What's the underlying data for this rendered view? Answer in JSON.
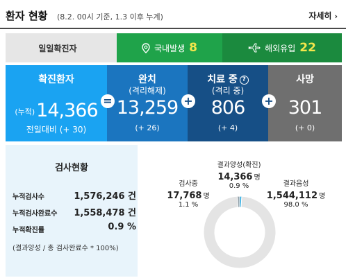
{
  "header": {
    "title": "환자 현황",
    "subtitle": "(8.2. 00시 기준, 1.3 이후 누계)",
    "more_label": "자세히",
    "more_chevron": "›"
  },
  "daily": {
    "label": "일일확진자",
    "domestic": {
      "label": "국내발생",
      "value": "8",
      "icon": "map-pin-icon"
    },
    "overseas": {
      "label": "해외유입",
      "value": "22",
      "icon": "airplane-icon"
    }
  },
  "stats": {
    "confirmed": {
      "label": "확진환자",
      "prefix": "(누적)",
      "value": "14,366",
      "delta": "전일대비 (+ 30)"
    },
    "recovered": {
      "label": "완치",
      "sub": "(격리해제)",
      "value": "13,259",
      "delta": "(+ 26)"
    },
    "treating": {
      "label": "치료 중",
      "help": "?",
      "sub": "(격리 중)",
      "value": "806",
      "delta": "(+ 4)"
    },
    "death": {
      "label": "사망",
      "value": "301",
      "delta": "(+ 0)"
    },
    "ops": {
      "eq": "=",
      "plus": "+"
    }
  },
  "tests": {
    "title": "검사현황",
    "rows": [
      {
        "key": "누적검사수",
        "value": "1,576,246 건"
      },
      {
        "key": "누적검사완료수",
        "value": "1,558,478 건"
      },
      {
        "key": "누적확진률",
        "value": "0.9 %"
      }
    ],
    "note": "(결과양성 / 총 검사완료수 * 100%)"
  },
  "chart_data": {
    "type": "pie",
    "categories": [
      "결과양성(확진)",
      "결과음성",
      "검사중"
    ],
    "values": [
      14366,
      1544112,
      17768
    ],
    "units": [
      "명",
      "명",
      "명"
    ],
    "percents": [
      "0.9 %",
      "98.0 %",
      "1.1 %"
    ],
    "colors": [
      "#29a9e0",
      "#e4e4e4",
      "#9aa7af"
    ],
    "donut": true
  }
}
